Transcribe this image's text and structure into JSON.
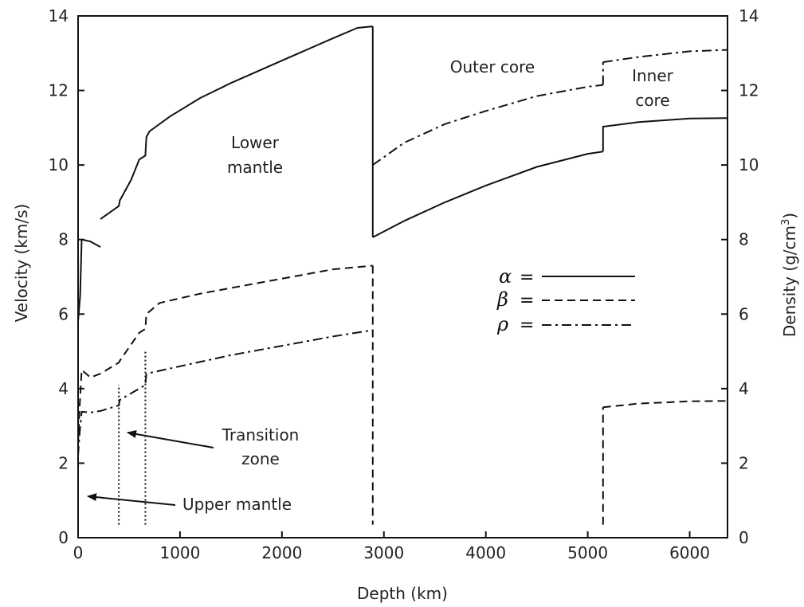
{
  "chart_data": {
    "type": "line",
    "xlabel": "Depth (km)",
    "ylabel_left": "Velocity (km/s)",
    "ylabel_right_main": "Density (g/cm",
    "ylabel_right_sup": "3",
    "ylabel_right_close": ")",
    "xlim": [
      0,
      6371
    ],
    "ylim_left": [
      0,
      14
    ],
    "ylim_right": [
      0,
      14
    ],
    "x_ticks": [
      0,
      1000,
      2000,
      3000,
      4000,
      5000,
      6000
    ],
    "x_tick_labels": [
      "0",
      "1000",
      "2000",
      "3000",
      "4000",
      "5000",
      "6000"
    ],
    "y_ticks": [
      0,
      2,
      4,
      6,
      8,
      10,
      12,
      14
    ],
    "y_tick_labels": [
      "0",
      "2",
      "4",
      "6",
      "8",
      "10",
      "12",
      "14"
    ],
    "grid": false,
    "legend": {
      "position": "center-right",
      "entries": [
        {
          "symbol": "α",
          "eq": "=",
          "style": "solid"
        },
        {
          "symbol": "β",
          "eq": "=",
          "style": "dashed"
        },
        {
          "symbol": "ρ",
          "eq": "=",
          "style": "dashdot"
        }
      ]
    },
    "series": [
      {
        "style": "solid",
        "segments": [
          [
            [
              0,
              5.8
            ],
            [
              20,
              6.5
            ],
            [
              35,
              8.0
            ],
            [
              120,
              7.95
            ],
            [
              220,
              7.8
            ]
          ],
          [
            [
              220,
              8.55
            ],
            [
              400,
              8.9
            ],
            [
              410,
              9.05
            ],
            [
              520,
              9.6
            ],
            [
              600,
              10.15
            ],
            [
              660,
              10.25
            ],
            [
              670,
              10.75
            ],
            [
              700,
              10.9
            ],
            [
              900,
              11.3
            ],
            [
              1200,
              11.8
            ],
            [
              1500,
              12.2
            ],
            [
              2000,
              12.8
            ],
            [
              2500,
              13.4
            ],
            [
              2740,
              13.68
            ],
            [
              2891,
              13.72
            ]
          ],
          [
            [
              2891,
              13.72
            ],
            [
              2891,
              8.06
            ]
          ],
          [
            [
              2891,
              8.06
            ],
            [
              3200,
              8.5
            ],
            [
              3600,
              9.0
            ],
            [
              4000,
              9.45
            ],
            [
              4500,
              9.95
            ],
            [
              5000,
              10.3
            ],
            [
              5150,
              10.36
            ]
          ],
          [
            [
              5150,
              10.36
            ],
            [
              5150,
              11.03
            ],
            [
              5500,
              11.15
            ],
            [
              6000,
              11.25
            ],
            [
              6371,
              11.26
            ]
          ]
        ]
      },
      {
        "style": "dashed",
        "segments": [
          [
            [
              0,
              2.5
            ],
            [
              15,
              3.5
            ],
            [
              35,
              4.5
            ],
            [
              120,
              4.3
            ],
            [
              220,
              4.4
            ],
            [
              400,
              4.7
            ],
            [
              410,
              4.75
            ],
            [
              600,
              5.5
            ],
            [
              660,
              5.6
            ],
            [
              670,
              6.0
            ],
            [
              800,
              6.3
            ],
            [
              1200,
              6.55
            ],
            [
              2000,
              6.95
            ],
            [
              2500,
              7.2
            ],
            [
              2891,
              7.3
            ]
          ],
          [
            [
              2891,
              7.3
            ],
            [
              2891,
              0.35
            ]
          ],
          [
            [
              5150,
              0.35
            ],
            [
              5150,
              3.5
            ]
          ],
          [
            [
              5150,
              3.5
            ],
            [
              5500,
              3.6
            ],
            [
              6000,
              3.66
            ],
            [
              6371,
              3.67
            ]
          ]
        ]
      },
      {
        "style": "dashdot",
        "segments": [
          [
            [
              0,
              2.2
            ],
            [
              15,
              2.8
            ],
            [
              35,
              3.38
            ],
            [
              120,
              3.36
            ],
            [
              220,
              3.4
            ],
            [
              400,
              3.55
            ],
            [
              410,
              3.7
            ],
            [
              600,
              4.0
            ],
            [
              660,
              4.1
            ],
            [
              670,
              4.4
            ],
            [
              1000,
              4.6
            ],
            [
              1500,
              4.9
            ],
            [
              2000,
              5.15
            ],
            [
              2500,
              5.4
            ],
            [
              2891,
              5.57
            ]
          ],
          [
            [
              2891,
              10.0
            ],
            [
              3200,
              10.6
            ],
            [
              3600,
              11.1
            ],
            [
              4000,
              11.45
            ],
            [
              4500,
              11.85
            ],
            [
              5000,
              12.1
            ],
            [
              5150,
              12.15
            ]
          ],
          [
            [
              5150,
              12.15
            ],
            [
              5150,
              12.76
            ]
          ],
          [
            [
              5150,
              12.76
            ],
            [
              5500,
              12.9
            ],
            [
              6000,
              13.05
            ],
            [
              6371,
              13.09
            ]
          ]
        ]
      }
    ],
    "annotations": {
      "lower_mantle_1": "Lower",
      "lower_mantle_2": "mantle",
      "outer_core": "Outer core",
      "inner_core_1": "Inner",
      "inner_core_2": "core",
      "transition_zone_1": "Transition",
      "transition_zone_2": "zone",
      "upper_mantle": "Upper mantle"
    },
    "transition_depths": [
      400,
      660
    ]
  }
}
